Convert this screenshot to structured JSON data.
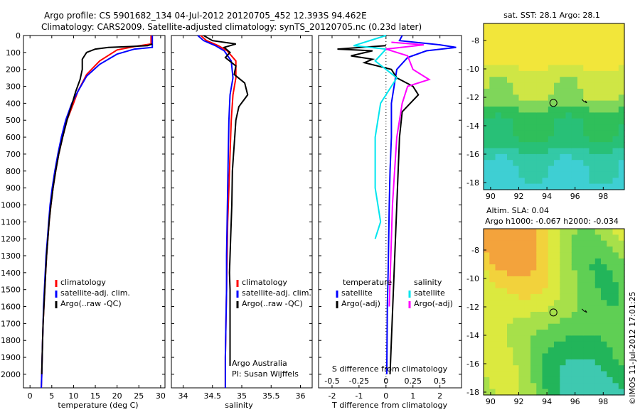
{
  "header": {
    "line1": "Argo profile: CS 5901682_134 04-Jul-2012 20120705_452 12.393S 94.462E",
    "line2": "Climatology: CARS2009. Satellite-adjusted climatology: synTS_20120705.nc (0.23d later)"
  },
  "colors": {
    "climatology": "#ff0000",
    "satellite": "#0000ff",
    "argo": "#000000",
    "sat_salinity": "#00e5ee",
    "argo_salinity": "#ff00ff"
  },
  "chart_data": [
    {
      "type": "line",
      "id": "temperature",
      "xlabel": "temperature (deg C)",
      "ylim": [
        2080,
        0
      ],
      "xlim": [
        -1.5,
        31
      ],
      "xticks": [
        "0",
        "5",
        "10",
        "15",
        "20",
        "25",
        "30"
      ],
      "xtick_values": [
        0,
        5,
        10,
        15,
        20,
        25,
        30
      ],
      "yticks": [
        "0",
        "100",
        "200",
        "300",
        "400",
        "500",
        "600",
        "700",
        "800",
        "900",
        "1000",
        "1100",
        "1200",
        "1300",
        "1400",
        "1500",
        "1600",
        "1700",
        "1800",
        "1900",
        "2000"
      ],
      "legend": [
        "climatology",
        "satellite-adj. clim.",
        "Argo(..raw -QC)"
      ],
      "series": [
        {
          "name": "climatology",
          "color": "#ff0000",
          "points": [
            [
              27.8,
              0
            ],
            [
              27.8,
              50
            ],
            [
              24,
              65
            ],
            [
              20,
              85
            ],
            [
              16,
              150
            ],
            [
              13,
              230
            ],
            [
              11,
              330
            ],
            [
              10,
              400
            ],
            [
              8.5,
              500
            ],
            [
              7.5,
              600
            ],
            [
              6.6,
              700
            ],
            [
              5.9,
              800
            ],
            [
              5.3,
              900
            ],
            [
              4.8,
              1000
            ],
            [
              4.4,
              1100
            ],
            [
              4.1,
              1200
            ],
            [
              3.8,
              1300
            ],
            [
              3.6,
              1400
            ],
            [
              3.4,
              1500
            ],
            [
              3.2,
              1600
            ],
            [
              3.0,
              1700
            ],
            [
              2.9,
              1800
            ],
            [
              2.8,
              1900
            ],
            [
              2.7,
              2000
            ],
            [
              2.6,
              2080
            ]
          ]
        },
        {
          "name": "satellite-adj. clim.",
          "color": "#0000ff",
          "points": [
            [
              28.1,
              0
            ],
            [
              28.1,
              70
            ],
            [
              24,
              80
            ],
            [
              20,
              110
            ],
            [
              16,
              170
            ],
            [
              13,
              240
            ],
            [
              11,
              330
            ],
            [
              9.6,
              400
            ],
            [
              8.2,
              500
            ],
            [
              7.2,
              600
            ],
            [
              6.4,
              700
            ],
            [
              5.7,
              800
            ],
            [
              5.1,
              900
            ],
            [
              4.6,
              1000
            ],
            [
              4.3,
              1100
            ],
            [
              4.0,
              1200
            ],
            [
              3.7,
              1300
            ],
            [
              3.5,
              1400
            ],
            [
              3.3,
              1500
            ],
            [
              3.1,
              1600
            ],
            [
              3.0,
              1700
            ],
            [
              2.9,
              1800
            ],
            [
              2.8,
              1900
            ],
            [
              2.7,
              2000
            ],
            [
              2.6,
              2080
            ]
          ]
        },
        {
          "name": "Argo(..raw -QC)",
          "color": "#000000",
          "points": [
            [
              28.1,
              50
            ],
            [
              27,
              60
            ],
            [
              23,
              65
            ],
            [
              18,
              70
            ],
            [
              15,
              80
            ],
            [
              13,
              100
            ],
            [
              12,
              140
            ],
            [
              12,
              200
            ],
            [
              11.5,
              260
            ],
            [
              10.5,
              330
            ],
            [
              9.7,
              400
            ],
            [
              8.5,
              500
            ],
            [
              7.5,
              600
            ],
            [
              6.6,
              700
            ],
            [
              5.9,
              800
            ],
            [
              5.3,
              900
            ],
            [
              4.8,
              1000
            ],
            [
              4.4,
              1100
            ],
            [
              4.1,
              1200
            ],
            [
              3.8,
              1300
            ],
            [
              3.6,
              1400
            ],
            [
              3.4,
              1500
            ],
            [
              3.2,
              1600
            ],
            [
              3.0,
              1700
            ],
            [
              2.9,
              1800
            ],
            [
              2.8,
              1900
            ],
            [
              2.7,
              2000
            ]
          ]
        }
      ]
    },
    {
      "type": "line",
      "id": "salinity",
      "xlabel": "salinity",
      "ylim": [
        2080,
        0
      ],
      "xlim": [
        33.8,
        36.2
      ],
      "xticks": [
        "34",
        "34.5",
        "35",
        "35.5",
        "36"
      ],
      "xtick_values": [
        34,
        34.5,
        35,
        35.5,
        36
      ],
      "legend": [
        "climatology",
        "satellite-adj. clim.",
        "Argo(..raw -QC)"
      ],
      "annotation": [
        "Argo Australia",
        "PI: Susan Wijffels"
      ],
      "series": [
        {
          "name": "climatology",
          "color": "#ff0000",
          "points": [
            [
              34.3,
              0
            ],
            [
              34.4,
              30
            ],
            [
              34.6,
              60
            ],
            [
              34.75,
              90
            ],
            [
              34.9,
              150
            ],
            [
              34.9,
              250
            ],
            [
              34.85,
              350
            ],
            [
              34.82,
              500
            ],
            [
              34.8,
              700
            ],
            [
              34.78,
              900
            ],
            [
              34.76,
              1100
            ],
            [
              34.75,
              1300
            ],
            [
              34.74,
              1500
            ],
            [
              34.73,
              1700
            ],
            [
              34.72,
              1900
            ],
            [
              34.72,
              2080
            ]
          ]
        },
        {
          "name": "satellite-adj. clim.",
          "color": "#0000ff",
          "points": [
            [
              34.25,
              0
            ],
            [
              34.35,
              30
            ],
            [
              34.55,
              60
            ],
            [
              34.7,
              90
            ],
            [
              34.82,
              150
            ],
            [
              34.85,
              250
            ],
            [
              34.8,
              350
            ],
            [
              34.78,
              500
            ],
            [
              34.77,
              700
            ],
            [
              34.76,
              900
            ],
            [
              34.75,
              1100
            ],
            [
              34.74,
              1300
            ],
            [
              34.74,
              1500
            ],
            [
              34.73,
              1700
            ],
            [
              34.72,
              1900
            ],
            [
              34.72,
              2080
            ]
          ]
        },
        {
          "name": "Argo(..raw -QC)",
          "color": "#000000",
          "points": [
            [
              34.35,
              0
            ],
            [
              34.5,
              30
            ],
            [
              34.9,
              50
            ],
            [
              34.7,
              70
            ],
            [
              34.8,
              100
            ],
            [
              34.72,
              130
            ],
            [
              34.9,
              180
            ],
            [
              34.87,
              230
            ],
            [
              35.05,
              280
            ],
            [
              35.1,
              350
            ],
            [
              34.95,
              420
            ],
            [
              34.9,
              500
            ],
            [
              34.88,
              600
            ],
            [
              34.86,
              700
            ],
            [
              34.84,
              800
            ],
            [
              34.83,
              1000
            ],
            [
              34.81,
              1200
            ],
            [
              34.79,
              1400
            ],
            [
              34.8,
              1500
            ],
            [
              34.8,
              1600
            ],
            [
              34.8,
              1700
            ],
            [
              34.8,
              1800
            ],
            [
              34.8,
              1900
            ],
            [
              34.8,
              1950
            ]
          ]
        }
      ]
    },
    {
      "type": "line",
      "id": "difference",
      "xlabel": "T difference from climatology",
      "top_label": "S difference from climatology",
      "ylim": [
        2080,
        0
      ],
      "xlim": [
        -2.5,
        2.8
      ],
      "xticks": [
        "-2",
        "-1",
        "0",
        "1",
        "2"
      ],
      "xtick_values": [
        -2,
        -1,
        0,
        1,
        2
      ],
      "sticks": [
        "-0.5",
        "-0.25",
        "0",
        "0.25",
        "0.5"
      ],
      "stick_values": [
        -0.5,
        -0.25,
        0,
        0.25,
        0.5
      ],
      "legend_temperature": {
        "title": "temperature",
        "items": [
          "satellite",
          "Argo(-adj)"
        ]
      },
      "legend_salinity": {
        "title": "salinity",
        "items": [
          "satellite",
          "Argo(-adj)"
        ]
      },
      "series": [
        {
          "name": "satellite",
          "quantity": "temperature",
          "color": "#0000ff",
          "points": [
            [
              0.6,
              0
            ],
            [
              0.5,
              30
            ],
            [
              2.0,
              55
            ],
            [
              2.6,
              70
            ],
            [
              1.5,
              90
            ],
            [
              0.8,
              130
            ],
            [
              0.4,
              200
            ],
            [
              0.3,
              300
            ],
            [
              0.2,
              400
            ],
            [
              0.2,
              600
            ],
            [
              0.15,
              800
            ],
            [
              0.12,
              1000
            ],
            [
              0.1,
              1200
            ],
            [
              0.08,
              1400
            ],
            [
              0.05,
              1600
            ],
            [
              0.04,
              1800
            ],
            [
              0.03,
              2000
            ]
          ]
        },
        {
          "name": "Argo(-adj)",
          "quantity": "temperature",
          "color": "#000000",
          "points": [
            [
              0.0,
              60
            ],
            [
              -1.8,
              80
            ],
            [
              -0.5,
              90
            ],
            [
              -1.3,
              120
            ],
            [
              -0.5,
              140
            ],
            [
              -0.8,
              160
            ],
            [
              0.2,
              200
            ],
            [
              0.4,
              250
            ],
            [
              1.0,
              300
            ],
            [
              1.2,
              350
            ],
            [
              0.6,
              450
            ],
            [
              0.5,
              600
            ],
            [
              0.45,
              800
            ],
            [
              0.4,
              1000
            ],
            [
              0.35,
              1200
            ],
            [
              0.3,
              1400
            ],
            [
              0.25,
              1600
            ],
            [
              0.2,
              1800
            ],
            [
              0.15,
              2000
            ]
          ]
        },
        {
          "name": "satellite",
          "quantity": "salinity",
          "color": "#00e5ee",
          "points": [
            [
              0,
              0
            ],
            [
              -0.3,
              60
            ],
            [
              0.0,
              80
            ],
            [
              -0.1,
              150
            ],
            [
              0.1,
              250
            ],
            [
              -0.05,
              400
            ],
            [
              -0.1,
              600
            ],
            [
              -0.1,
              900
            ],
            [
              -0.05,
              1100
            ],
            [
              -0.1,
              1200
            ]
          ]
        },
        {
          "name": "Argo(-adj)",
          "quantity": "salinity",
          "color": "#ff00ff",
          "points": [
            [
              0.05,
              40
            ],
            [
              0.35,
              55
            ],
            [
              0.0,
              80
            ],
            [
              0.2,
              120
            ],
            [
              0.25,
              200
            ],
            [
              0.4,
              260
            ],
            [
              0.2,
              300
            ],
            [
              0.15,
              400
            ],
            [
              0.1,
              600
            ],
            [
              0.08,
              800
            ],
            [
              0.06,
              1000
            ],
            [
              0.05,
              1200
            ],
            [
              0.04,
              1400
            ],
            [
              0.03,
              1600
            ]
          ]
        }
      ]
    },
    {
      "type": "heatmap",
      "id": "sst_map",
      "title": "sat. SST: 28.1  Argo: 28.1",
      "xticks": [
        "90",
        "92",
        "94",
        "96",
        "98"
      ],
      "xtick_values": [
        90,
        92,
        94,
        96,
        98
      ],
      "yticks": [
        "-8",
        "-10",
        "-12",
        "-14",
        "-16",
        "-18"
      ],
      "ytick_values": [
        -8,
        -10,
        -12,
        -14,
        -16,
        -18
      ],
      "xlim": [
        89.5,
        99.5
      ],
      "ylim": [
        -18.5,
        -6.8
      ],
      "argo_position": [
        94.462,
        -12.393
      ]
    },
    {
      "type": "heatmap",
      "id": "sla_map",
      "title_line1": "Altim. SLA: 0.04",
      "title_line2": "Argo h1000: -0.067 h2000: -0.034",
      "xticks": [
        "90",
        "92",
        "94",
        "96",
        "98"
      ],
      "xtick_values": [
        90,
        92,
        94,
        96,
        98
      ],
      "yticks": [
        "-8",
        "-10",
        "-12",
        "-14",
        "-16",
        "-18"
      ],
      "ytick_values": [
        -8,
        -10,
        -12,
        -14,
        -16,
        -18
      ],
      "xlim": [
        89.5,
        99.5
      ],
      "ylim": [
        -18.2,
        -6.5
      ],
      "argo_position": [
        94.462,
        -12.393
      ]
    }
  ],
  "footer": {
    "stamp": "©IMOS 11-Jul-2012 17:01:25"
  }
}
